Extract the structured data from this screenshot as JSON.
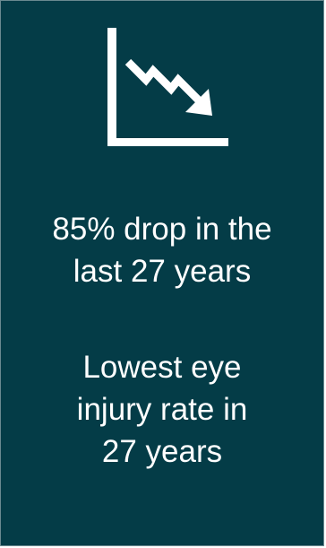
{
  "card": {
    "icon": "trend-down-chart-icon",
    "background": "#043c47",
    "text_color": "#ffffff",
    "stats": [
      {
        "lines": [
          "85% drop in the",
          "last 27 years"
        ]
      },
      {
        "lines": [
          "Lowest eye",
          "injury rate in",
          "27 years"
        ]
      }
    ]
  }
}
